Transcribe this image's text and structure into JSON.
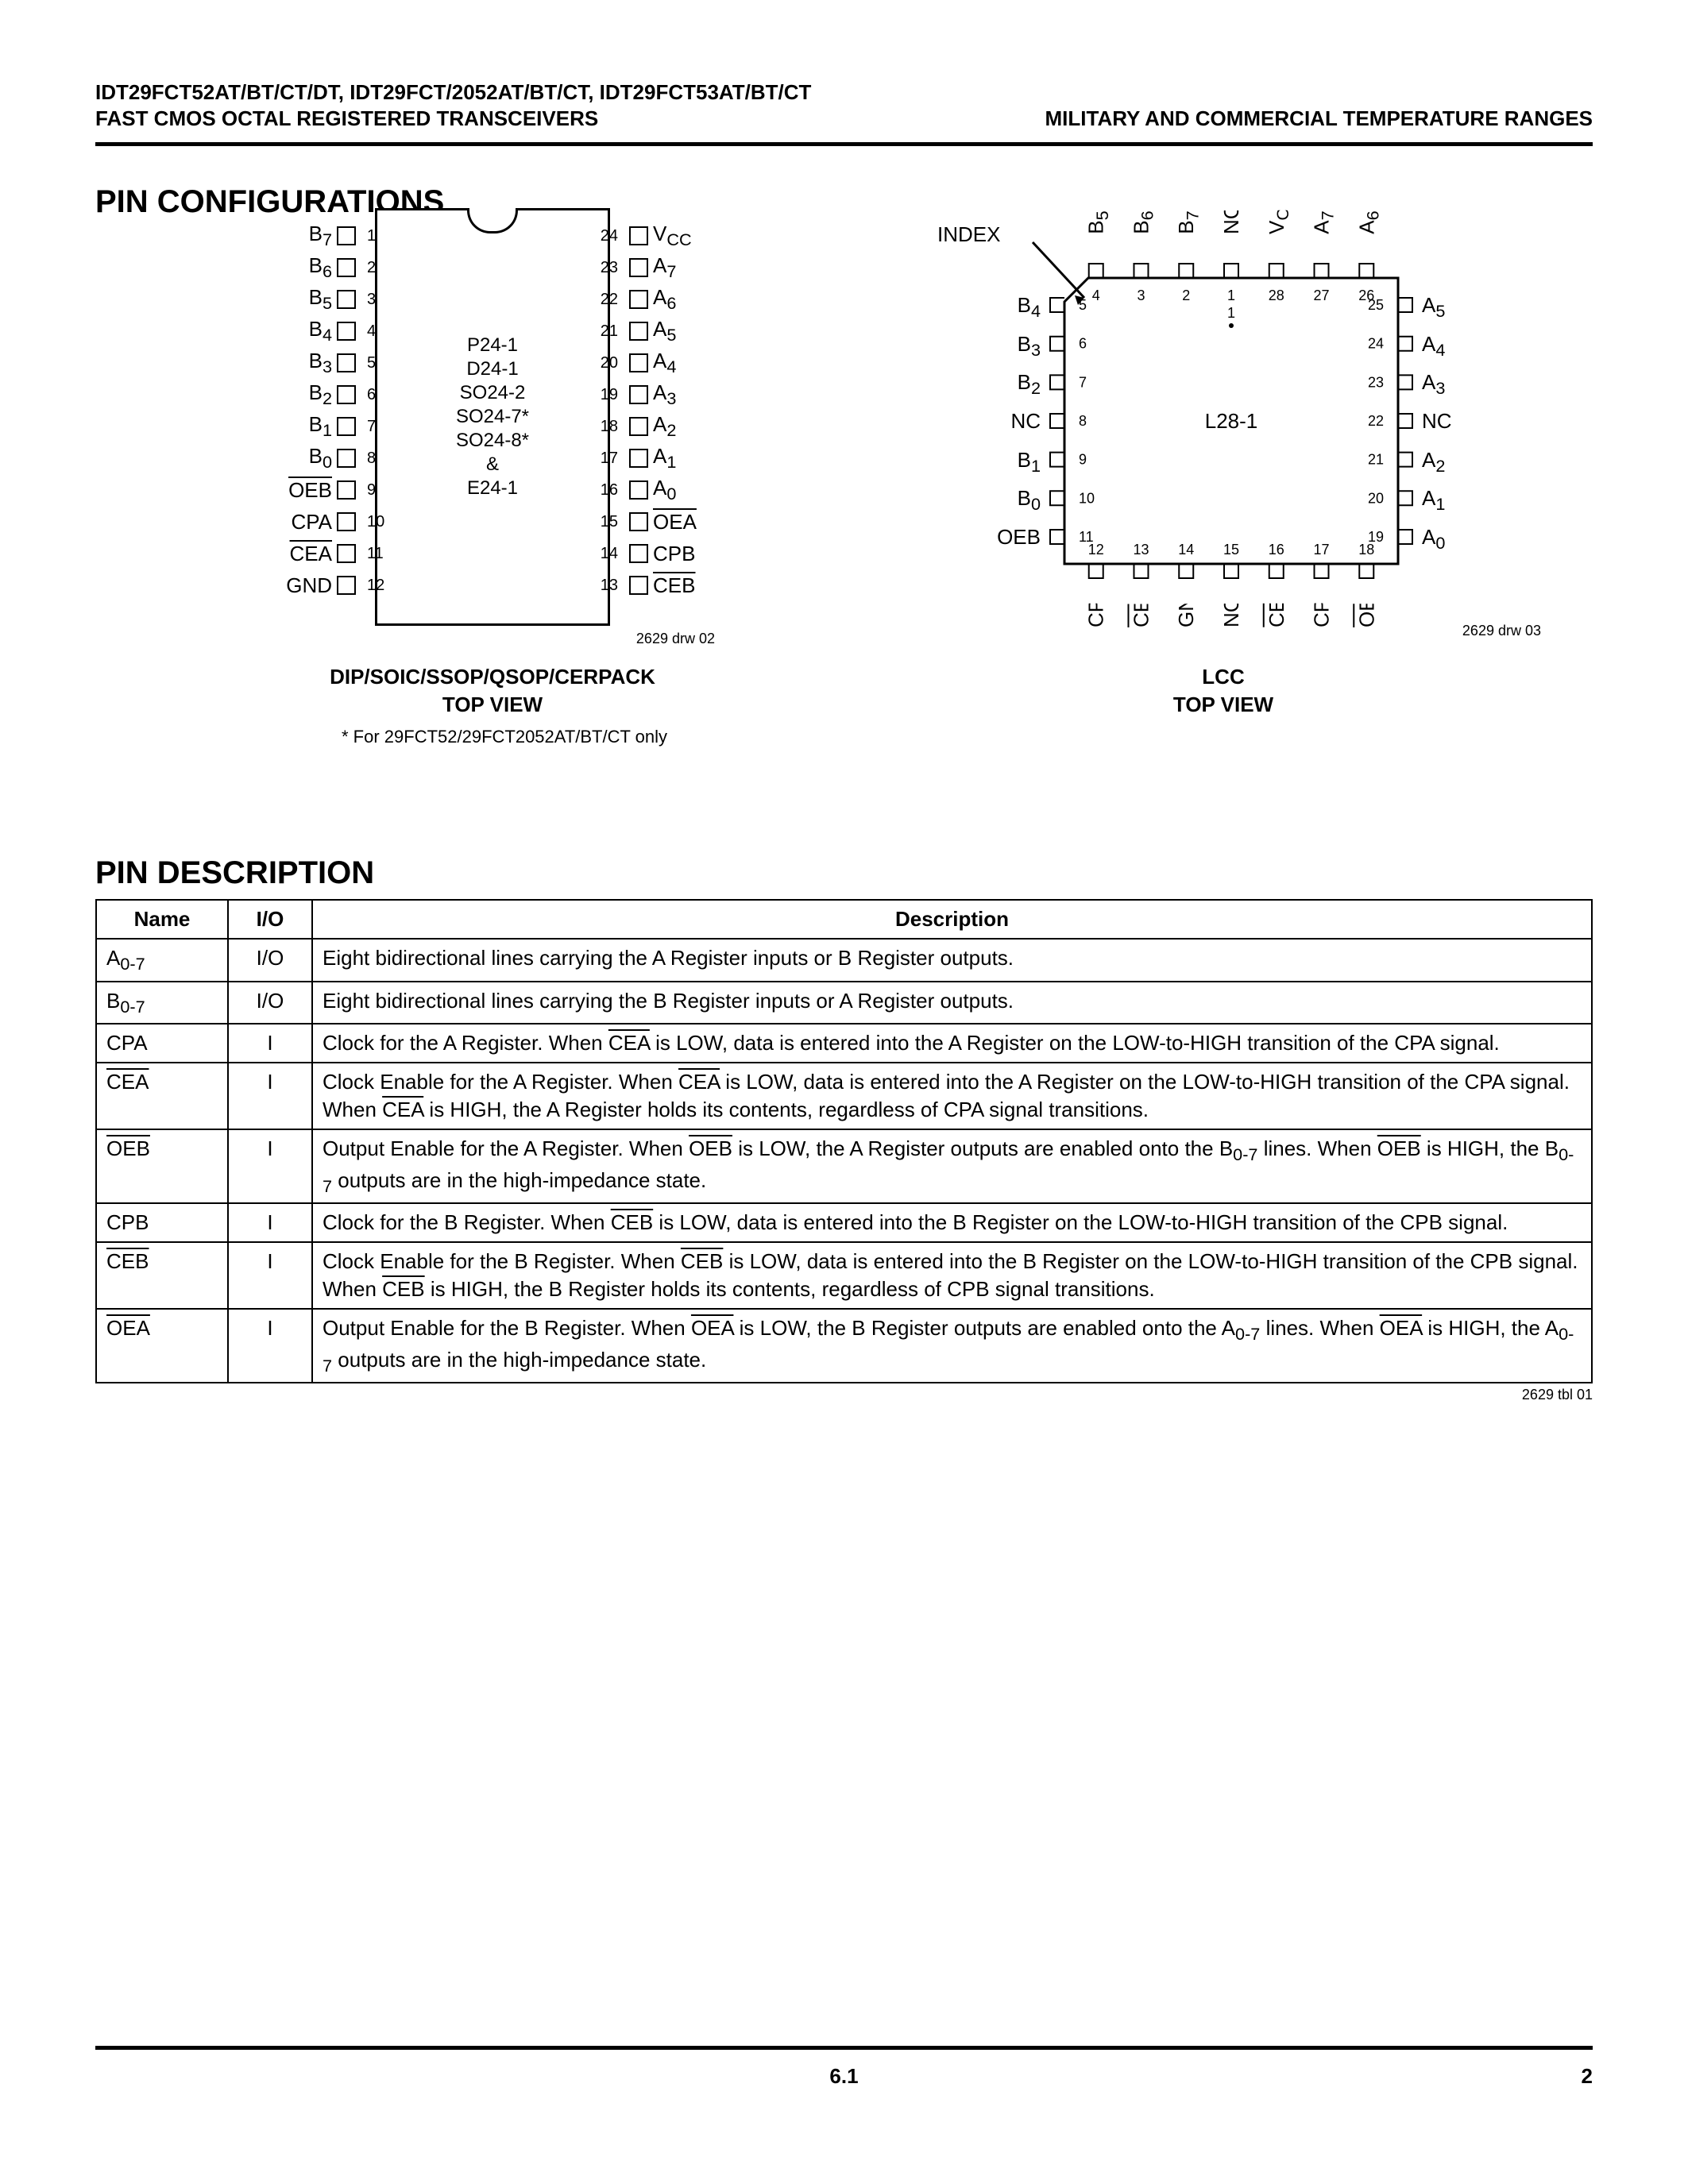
{
  "header": {
    "line1": "IDT29FCT52AT/BT/CT/DT, IDT29FCT/2052AT/BT/CT, IDT29FCT53AT/BT/CT",
    "line2": "FAST CMOS OCTAL REGISTERED TRANSCEIVERS",
    "right": "MILITARY AND COMMERCIAL TEMPERATURE RANGES"
  },
  "section_pinconfig": "PIN CONFIGURATIONS",
  "section_pindesc": "PIN DESCRIPTION",
  "dip": {
    "left_labels": [
      "B<sub>7</sub>",
      "B<sub>6</sub>",
      "B<sub>5</sub>",
      "B<sub>4</sub>",
      "B<sub>3</sub>",
      "B<sub>2</sub>",
      "B<sub>1</sub>",
      "B<sub>0</sub>",
      "<span class='ovl'>OEB</span>",
      "CPA",
      "<span class='ovl'>CEA</span>",
      "GND"
    ],
    "right_labels": [
      "V<sub>CC</sub>",
      "A<sub>7</sub>",
      "A<sub>6</sub>",
      "A<sub>5</sub>",
      "A<sub>4</sub>",
      "A<sub>3</sub>",
      "A<sub>2</sub>",
      "A<sub>1</sub>",
      "A<sub>0</sub>",
      "<span class='ovl'>OEA</span>",
      "CPB",
      "<span class='ovl'>CEB</span>"
    ],
    "left_nums": [
      "1",
      "2",
      "3",
      "4",
      "5",
      "6",
      "7",
      "8",
      "9",
      "10",
      "11",
      "12"
    ],
    "right_nums": [
      "24",
      "23",
      "22",
      "21",
      "20",
      "19",
      "18",
      "17",
      "16",
      "15",
      "14",
      "13"
    ],
    "center": [
      "P24-1",
      "D24-1",
      "SO24-2",
      "SO24-7*",
      "SO24-8*",
      "&",
      "E24-1"
    ],
    "caption_l1": "DIP/SOIC/SSOP/QSOP/CERPACK",
    "caption_l2": "TOP VIEW",
    "note": "* For 29FCT52/29FCT2052AT/BT/CT only",
    "drw": "2629 drw 02"
  },
  "lcc": {
    "index": "INDEX",
    "top_labels": [
      "B<sub>5</sub>",
      "B<sub>6</sub>",
      "B<sub>7</sub>",
      "NC",
      "V<sub>CC</sub>",
      "A<sub>7</sub>",
      "A<sub>6</sub>"
    ],
    "top_nums": [
      "4",
      "3",
      "2",
      "1",
      "28",
      "27",
      "26"
    ],
    "left_labels": [
      "B<sub>4</sub>",
      "B<sub>3</sub>",
      "B<sub>2</sub>",
      "NC",
      "B<sub>1</sub>",
      "B<sub>0</sub>",
      "<span class='ovl'>OEB</span>"
    ],
    "left_nums": [
      "5",
      "6",
      "7",
      "8",
      "9",
      "10",
      "11"
    ],
    "right_labels": [
      "A<sub>5</sub>",
      "A<sub>4</sub>",
      "A<sub>3</sub>",
      "NC",
      "A<sub>2</sub>",
      "A<sub>1</sub>",
      "A<sub>0</sub>"
    ],
    "right_nums": [
      "25",
      "24",
      "23",
      "22",
      "21",
      "20",
      "19"
    ],
    "bottom_nums": [
      "12",
      "13",
      "14",
      "15",
      "16",
      "17",
      "18"
    ],
    "bottom_labels": [
      "CPA",
      "<span class='ovl'>CEA</span>",
      "GND",
      "NC",
      "<span class='ovl'>CEB</span>",
      "CPB",
      "<span class='ovl'>OEA</span>"
    ],
    "center": "L28-1",
    "caption_l1": "LCC",
    "caption_l2": "TOP VIEW",
    "drw": "2629 drw 03"
  },
  "table": {
    "headers": [
      "Name",
      "I/O",
      "Description"
    ],
    "rows": [
      {
        "name": "A<sub>0-7</sub>",
        "io": "I/O",
        "desc": "Eight bidirectional lines carrying the A Register inputs or B Register outputs."
      },
      {
        "name": "B<sub>0-7</sub>",
        "io": "I/O",
        "desc": "Eight bidirectional lines carrying the B Register inputs or A Register outputs."
      },
      {
        "name": "CPA",
        "io": "I",
        "desc": "Clock for the A Register.  When <span class='ovl'>CEA</span> is LOW, data is entered into the A Register on the LOW-to-HIGH transition of the CPA signal."
      },
      {
        "name": "<span class='ovl'>CEA</span>",
        "io": "I",
        "desc": "Clock Enable for the A Register.  When <span class='ovl'>CEA</span> is LOW, data is entered into the A Register on the LOW-to-HIGH transition of the CPA signal.  When <span class='ovl'>CEA</span> is HIGH, the A Register holds its contents, regardless of CPA signal transitions."
      },
      {
        "name": "<span class='ovl'>OEB</span>",
        "io": "I",
        "desc": "Output Enable for the A Register.  When <span class='ovl'>OEB</span> is LOW, the A Register outputs are enabled onto the B<sub>0-7</sub> lines.  When <span class='ovl'>OEB</span> is HIGH, the B<sub>0-7</sub> outputs are in the high-impedance state."
      },
      {
        "name": "CPB",
        "io": "I",
        "desc": "Clock for the B Register.  When <span class='ovl'>CEB</span> is LOW, data is entered into the B Register on the LOW-to-HIGH transition of the CPB signal."
      },
      {
        "name": "<span class='ovl'>CEB</span>",
        "io": "I",
        "desc": "Clock Enable for the B Register.  When <span class='ovl'>CEB</span> is LOW, data is entered into the B Register on the LOW-to-HIGH transition of the CPB signal.  When <span class='ovl'>CEB</span> is HIGH, the B Register holds its contents, regardless of CPB signal transitions."
      },
      {
        "name": "<span class='ovl'>OEA</span>",
        "io": "I",
        "desc": "Output Enable for the B Register.  When <span class='ovl'>OEA</span> is LOW, the B Register outputs are enabled onto the A<sub>0-7</sub> lines.  When <span class='ovl'>OEA</span> is HIGH, the A<sub>0-7</sub> outputs are in the high-impedance state."
      }
    ],
    "note": "2629 tbl 01"
  },
  "footer": {
    "section": "6.1",
    "page": "2"
  }
}
